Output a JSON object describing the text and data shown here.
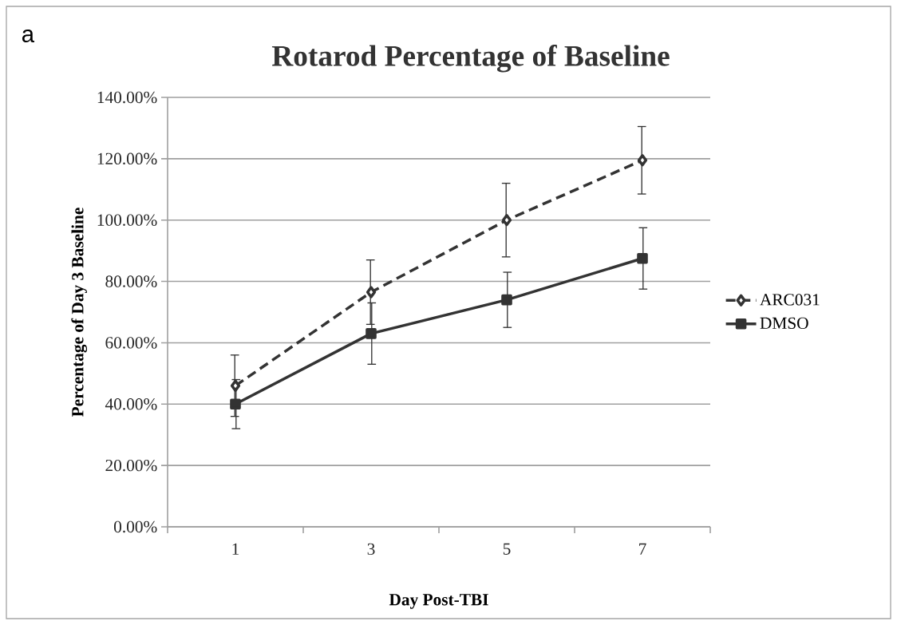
{
  "chart_data": {
    "type": "line",
    "title": "Rotarod Percentage of Baseline",
    "xlabel": "Day Post-TBI",
    "ylabel": "Percentage of Day 3 Baseline",
    "annotations": [
      "a"
    ],
    "categories": [
      "1",
      "3",
      "5",
      "7"
    ],
    "series": [
      {
        "name": "ARC031",
        "color": "#333333",
        "values": [
          46,
          76.5,
          100,
          119.5
        ],
        "errors": [
          10,
          10.5,
          12,
          11
        ],
        "marker": "diamond",
        "line_style": "dashed"
      },
      {
        "name": "DMSO",
        "color": "#333333",
        "values": [
          40,
          63,
          74,
          87.5
        ],
        "errors": [
          8,
          10,
          9,
          10
        ],
        "marker": "square",
        "line_style": "solid"
      }
    ],
    "ylim": [
      0,
      140
    ],
    "yticks": [
      {
        "value": 0,
        "label": "0.00%"
      },
      {
        "value": 20,
        "label": "20.00%"
      },
      {
        "value": 40,
        "label": "40.00%"
      },
      {
        "value": 60,
        "label": "60.00%"
      },
      {
        "value": 80,
        "label": "80.00%"
      },
      {
        "value": 100,
        "label": "100.00%"
      },
      {
        "value": 120,
        "label": "120.00%"
      },
      {
        "value": 140,
        "label": "140.00%"
      }
    ],
    "grid": "y",
    "legend": "right"
  }
}
